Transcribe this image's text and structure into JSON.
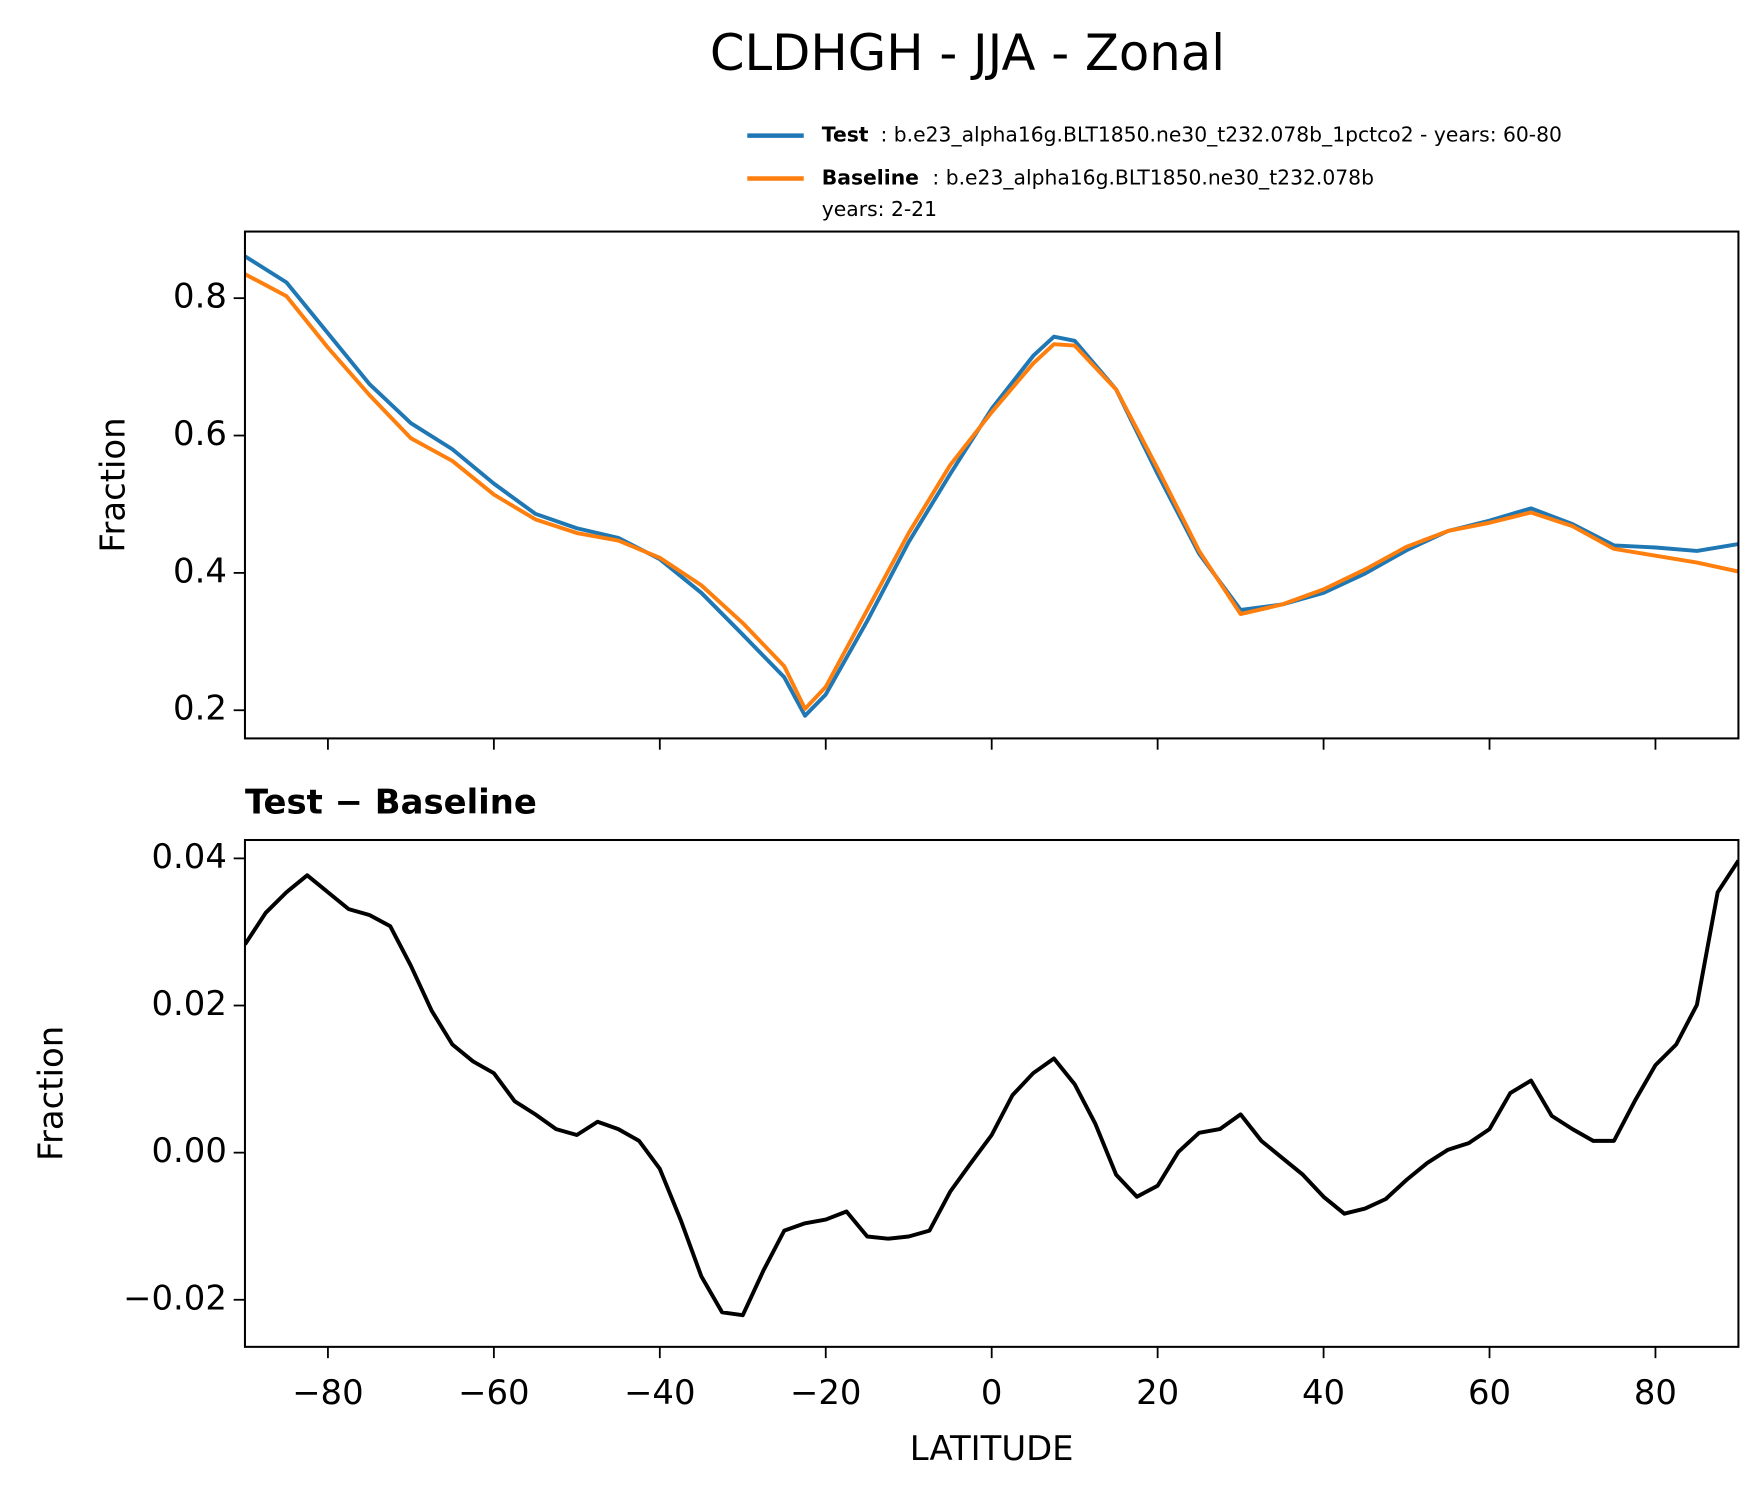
{
  "title": "CLDHGH - JJA - Zonal",
  "chart_data": [
    {
      "type": "line",
      "ylabel": "Fraction",
      "x": [
        -90,
        -85,
        -80,
        -75,
        -70,
        -65,
        -60,
        -55,
        -50,
        -45,
        -40,
        -35,
        -30,
        -25,
        -22.5,
        -20,
        -15,
        -10,
        -5,
        0,
        5,
        7.5,
        10,
        15,
        20,
        25,
        30,
        35,
        40,
        45,
        50,
        55,
        60,
        65,
        70,
        75,
        80,
        85,
        90
      ],
      "series": [
        {
          "name": "Test",
          "description": [
            ": b.e23_alpha16g.BLT1850.ne30_t232.078b_1pctco2 - years: 60-80"
          ],
          "color": "#1f77b4",
          "values": [
            0.861,
            0.823,
            0.749,
            0.675,
            0.618,
            0.58,
            0.53,
            0.486,
            0.465,
            0.451,
            0.42,
            0.371,
            0.31,
            0.248,
            0.192,
            0.223,
            0.33,
            0.445,
            0.544,
            0.639,
            0.716,
            0.744,
            0.738,
            0.667,
            0.544,
            0.428,
            0.346,
            0.354,
            0.371,
            0.399,
            0.433,
            0.461,
            0.476,
            0.494,
            0.471,
            0.44,
            0.437,
            0.432,
            0.442
          ]
        },
        {
          "name": "Baseline",
          "description": [
            ": b.e23_alpha16g.BLT1850.ne30_t232.078b",
            "years: 2-21"
          ],
          "color": "#ff7f0e",
          "values": [
            0.835,
            0.803,
            0.728,
            0.659,
            0.596,
            0.563,
            0.514,
            0.478,
            0.458,
            0.447,
            0.422,
            0.382,
            0.327,
            0.264,
            0.202,
            0.234,
            0.346,
            0.458,
            0.557,
            0.634,
            0.705,
            0.733,
            0.731,
            0.667,
            0.552,
            0.432,
            0.34,
            0.354,
            0.376,
            0.405,
            0.438,
            0.461,
            0.473,
            0.488,
            0.468,
            0.435,
            0.425,
            0.415,
            0.402
          ]
        }
      ],
      "xlim": [
        -90,
        90
      ],
      "xticks": [
        -80,
        -60,
        -40,
        -20,
        0,
        20,
        40,
        60,
        80
      ],
      "ylim": [
        0.159,
        0.897
      ],
      "yticks": [
        0.2,
        0.4,
        0.6,
        0.8
      ]
    },
    {
      "type": "line",
      "title": "Test − Baseline",
      "ylabel": "Fraction",
      "xlabel": "LATITUDE",
      "x": [
        -90,
        -87.5,
        -85,
        -82.5,
        -80,
        -77.5,
        -75,
        -72.5,
        -70,
        -67.5,
        -65,
        -62.5,
        -60,
        -57.5,
        -55,
        -52.5,
        -50,
        -47.5,
        -45,
        -42.5,
        -40,
        -37.5,
        -35,
        -32.5,
        -30,
        -27.5,
        -25,
        -22.5,
        -20,
        -17.5,
        -15,
        -12.5,
        -10,
        -7.5,
        -5,
        -2.5,
        0,
        2.5,
        5,
        7.5,
        10,
        12.5,
        15,
        17.5,
        20,
        22.5,
        25,
        27.5,
        30,
        32.5,
        35,
        37.5,
        40,
        42.5,
        45,
        47.5,
        50,
        52.5,
        55,
        57.5,
        60,
        62.5,
        65,
        67.5,
        70,
        72.5,
        75,
        77.5,
        80,
        82.5,
        85,
        87.5,
        90
      ],
      "series": [
        {
          "name": "Test − Baseline",
          "color": "#000000",
          "values": [
            0.0283,
            0.0326,
            0.0354,
            0.0377,
            0.0354,
            0.0331,
            0.0323,
            0.0308,
            0.0254,
            0.0193,
            0.0147,
            0.0124,
            0.0108,
            0.007,
            0.0052,
            0.0032,
            0.0024,
            0.0042,
            0.0032,
            0.0016,
            -0.0022,
            -0.0091,
            -0.0168,
            -0.0217,
            -0.0221,
            -0.016,
            -0.0106,
            -0.0096,
            -0.0091,
            -0.008,
            -0.0114,
            -0.0117,
            -0.0114,
            -0.0106,
            -0.0053,
            -0.0014,
            0.0024,
            0.0078,
            0.0108,
            0.0128,
            0.0093,
            0.0039,
            -0.003,
            -0.006,
            -0.0045,
            0.0001,
            0.0027,
            0.0032,
            0.0052,
            0.0016,
            -0.0007,
            -0.003,
            -0.006,
            -0.0083,
            -0.0076,
            -0.0063,
            -0.0037,
            -0.0014,
            0.0004,
            0.0013,
            0.0032,
            0.0081,
            0.0098,
            0.005,
            0.0032,
            0.0016,
            0.0016,
            0.007,
            0.0119,
            0.0147,
            0.0201,
            0.0354,
            0.0397
          ]
        }
      ],
      "xlim": [
        -90,
        90
      ],
      "xticks": [
        {
          "value": -80,
          "label": "−80"
        },
        {
          "value": -60,
          "label": "−60"
        },
        {
          "value": -40,
          "label": "−40"
        },
        {
          "value": -20,
          "label": "−20"
        },
        0,
        20,
        40,
        60,
        80
      ],
      "ylim": [
        -0.0264,
        0.0425
      ],
      "yticks": [
        {
          "value": -0.02,
          "label": "−0.02"
        },
        {
          "value": 0,
          "label": "0.00"
        },
        {
          "value": 0.02,
          "label": "0.02"
        },
        0.04
      ]
    }
  ]
}
